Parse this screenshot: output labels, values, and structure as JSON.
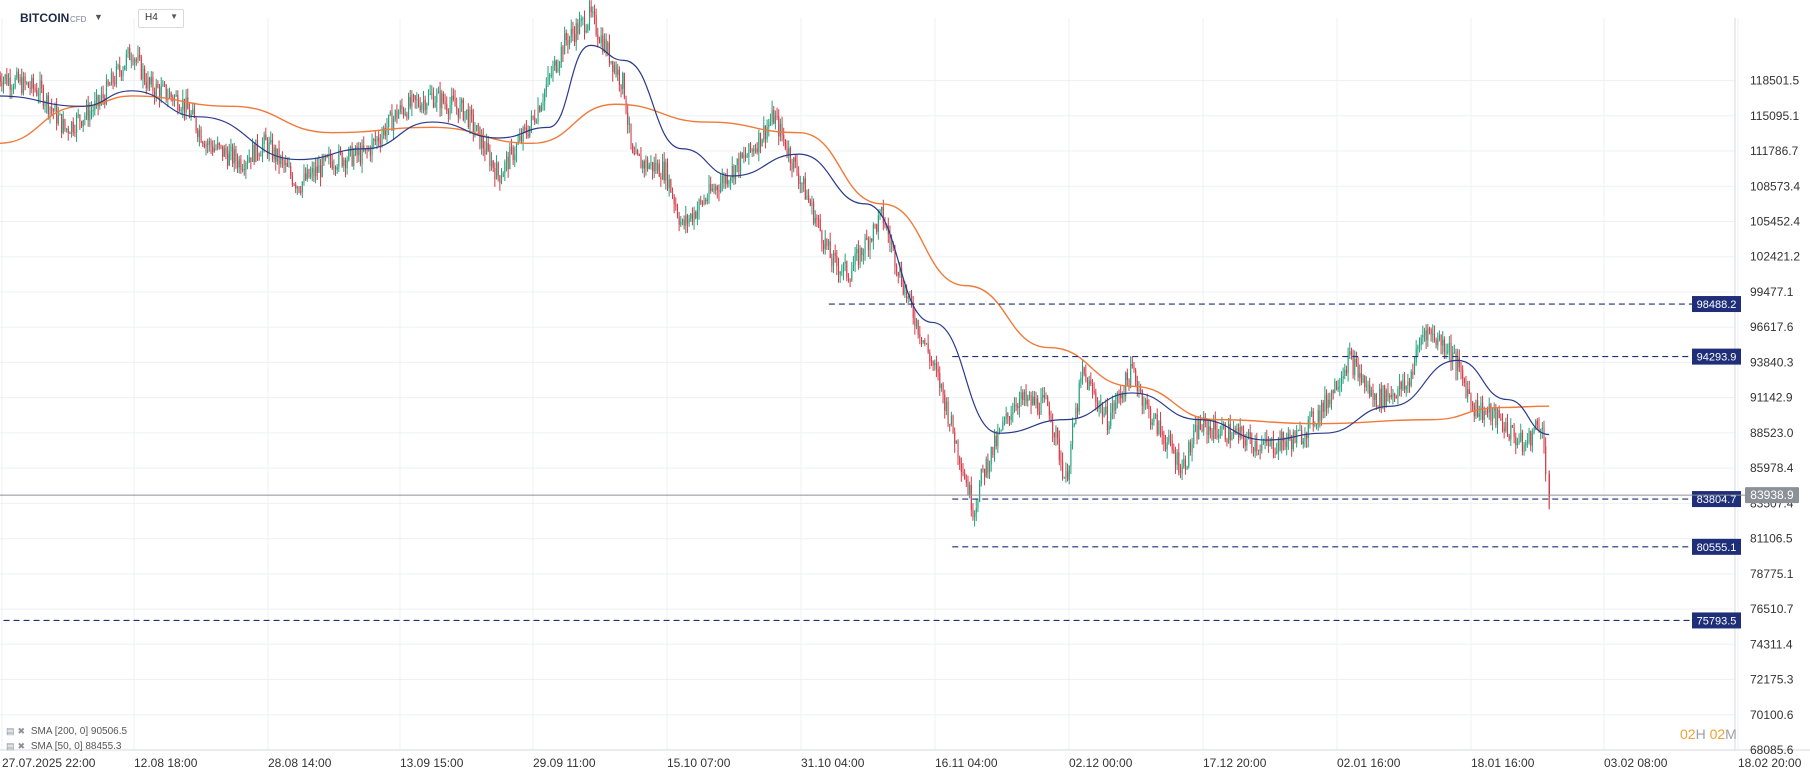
{
  "header": {
    "symbol": "BITCOIN",
    "symbol_type": "CFD",
    "timeframe": "H4",
    "caret_icon": "chevron-down-icon"
  },
  "indicators": [
    {
      "label": "SMA [200,  0]",
      "value": "90506.5",
      "color": "#f07a3a"
    },
    {
      "label": "SMA [50,  0]",
      "value": "88455.3",
      "color": "#2a3a8a"
    }
  ],
  "countdown": {
    "hours": "02",
    "h_unit": "H",
    "minutes": "02",
    "m_unit": "M"
  },
  "colors": {
    "up": "#26a17b",
    "down": "#d43b49",
    "sma200": "#f07a3a",
    "sma50": "#2a3a8a",
    "level": "#1e2e78",
    "price_tag": "#8c9199",
    "grid": "#eef0f3"
  },
  "chart_data": {
    "type": "candlestick",
    "title": "",
    "ylim": [
      68085.6,
      124800
    ],
    "y_ticks": [
      "118501.5",
      "115095.1",
      "111786.7",
      "108573.4",
      "105452.4",
      "102421.2",
      "99477.1",
      "96617.6",
      "93840.3",
      "91142.9",
      "88523.0",
      "85978.4",
      "83507.4",
      "81106.5",
      "78775.1",
      "76510.7",
      "74311.4",
      "72175.3",
      "70100.6",
      "68085.6"
    ],
    "x_ticks": [
      "27.07.2025  22:00",
      "12.08  18:00",
      "28.08  14:00",
      "13.09  15:00",
      "29.09  11:00",
      "15.10  07:00",
      "31.10  04:00",
      "16.11  04:00",
      "02.12  00:00",
      "17.12  20:00",
      "02.01  16:00",
      "18.01  16:00",
      "03.02  08:00",
      "18.02  20:00"
    ],
    "last_price": "83938.9",
    "horizontal_levels": [
      {
        "value": 98488.2,
        "label": "98488.2",
        "from": "31.10"
      },
      {
        "value": 94293.9,
        "label": "94293.9",
        "from": "16.11"
      },
      {
        "value": 83804.7,
        "label": "83804.7",
        "from": "16.11"
      },
      {
        "value": 80555.1,
        "label": "80555.1",
        "from": "16.11"
      },
      {
        "value": 75793.5,
        "label": "75793.5",
        "from": "27.07.2025"
      }
    ],
    "price_path": [
      [
        "27.07.2025",
        119000
      ],
      [
        "01.08",
        117500
      ],
      [
        "04.08",
        113800
      ],
      [
        "08.08",
        116200
      ],
      [
        "12.08",
        121500
      ],
      [
        "14.08",
        118000
      ],
      [
        "18.08",
        116500
      ],
      [
        "21.08",
        112500
      ],
      [
        "25.08",
        110800
      ],
      [
        "28.08",
        112500
      ],
      [
        "01.09",
        108700
      ],
      [
        "05.09",
        111000
      ],
      [
        "09.09",
        111500
      ],
      [
        "13.09",
        115500
      ],
      [
        "17.09",
        117000
      ],
      [
        "21.09",
        115500
      ],
      [
        "25.09",
        109500
      ],
      [
        "29.09",
        114500
      ],
      [
        "03.10",
        122500
      ],
      [
        "06.10",
        125000
      ],
      [
        "10.10",
        118000
      ],
      [
        "11.10",
        111000
      ],
      [
        "15.10",
        110000
      ],
      [
        "17.10",
        105000
      ],
      [
        "21.10",
        108500
      ],
      [
        "25.10",
        111500
      ],
      [
        "28.10",
        115000
      ],
      [
        "31.10",
        109500
      ],
      [
        "04.11",
        102000
      ],
      [
        "06.11",
        101000
      ],
      [
        "10.11",
        106000
      ],
      [
        "13.11",
        99000
      ],
      [
        "17.11",
        92000
      ],
      [
        "21.11",
        83000
      ],
      [
        "22.11",
        85500
      ],
      [
        "26.11",
        91000
      ],
      [
        "30.11",
        90500
      ],
      [
        "02.12",
        85000
      ],
      [
        "04.12",
        93000
      ],
      [
        "07.12",
        89500
      ],
      [
        "10.12",
        93200
      ],
      [
        "12.12",
        90000
      ],
      [
        "16.12",
        86000
      ],
      [
        "18.12",
        89000
      ],
      [
        "22.12",
        88500
      ],
      [
        "26.12",
        87500
      ],
      [
        "30.12",
        88200
      ],
      [
        "02.01",
        90500
      ],
      [
        "05.01",
        94200
      ],
      [
        "08.01",
        91000
      ],
      [
        "12.01",
        92000
      ],
      [
        "14.01",
        96500
      ],
      [
        "17.01",
        95000
      ],
      [
        "20.01",
        90500
      ],
      [
        "23.01",
        89500
      ],
      [
        "26.01",
        87500
      ],
      [
        "28.01",
        89500
      ],
      [
        "29.01",
        83900
      ]
    ],
    "sma50_path": [
      [
        "27.07.2025",
        117000
      ],
      [
        "06.08",
        116000
      ],
      [
        "12.08",
        117500
      ],
      [
        "20.08",
        115000
      ],
      [
        "01.09",
        111000
      ],
      [
        "09.09",
        112000
      ],
      [
        "17.09",
        114500
      ],
      [
        "25.09",
        113000
      ],
      [
        "01.10",
        114000
      ],
      [
        "06.10",
        122000
      ],
      [
        "10.10",
        120500
      ],
      [
        "17.10",
        112000
      ],
      [
        "23.10",
        109500
      ],
      [
        "31.10",
        111500
      ],
      [
        "08.11",
        107000
      ],
      [
        "16.11",
        97000
      ],
      [
        "24.11",
        88500
      ],
      [
        "02.12",
        89500
      ],
      [
        "10.12",
        91500
      ],
      [
        "18.12",
        89500
      ],
      [
        "26.12",
        88000
      ],
      [
        "02.01",
        88500
      ],
      [
        "10.01",
        90500
      ],
      [
        "18.01",
        94000
      ],
      [
        "24.01",
        91000
      ],
      [
        "29.01",
        88400
      ]
    ],
    "sma200_path": [
      [
        "27.07.2025",
        112500
      ],
      [
        "06.08",
        116000
      ],
      [
        "12.08",
        117000
      ],
      [
        "24.08",
        116000
      ],
      [
        "05.09",
        113500
      ],
      [
        "17.09",
        114000
      ],
      [
        "29.09",
        112500
      ],
      [
        "09.10",
        116200
      ],
      [
        "20.10",
        114500
      ],
      [
        "31.10",
        113500
      ],
      [
        "10.11",
        107000
      ],
      [
        "20.11",
        100000
      ],
      [
        "30.11",
        95000
      ],
      [
        "10.12",
        92000
      ],
      [
        "20.12",
        89500
      ],
      [
        "01.01",
        89200
      ],
      [
        "15.01",
        89500
      ],
      [
        "23.01",
        90400
      ],
      [
        "29.01",
        90500
      ]
    ]
  }
}
